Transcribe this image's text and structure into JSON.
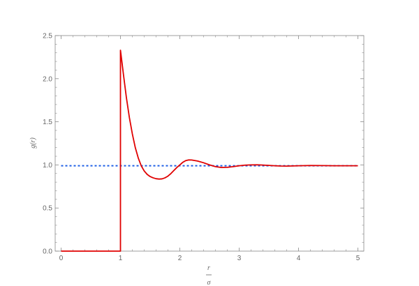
{
  "chart_data": {
    "type": "line",
    "title": "",
    "xlabel": {
      "numerator": "r",
      "denominator": "σ"
    },
    "ylabel": "g(r)",
    "xlim": [
      -0.1,
      5.1
    ],
    "ylim": [
      0,
      2.5
    ],
    "x_ticks": [
      "0",
      "1",
      "2",
      "3",
      "4",
      "5"
    ],
    "y_ticks": [
      "0.0",
      "0.5",
      "1.0",
      "1.5",
      "2.0",
      "2.5"
    ],
    "grid": false,
    "legend": "none",
    "series": [
      {
        "style": "dotted",
        "color": "#1f5fe6",
        "points": [
          [
            0.0,
            0.99
          ],
          [
            1.0,
            0.99
          ],
          [
            2.0,
            0.99
          ],
          [
            3.0,
            0.99
          ],
          [
            4.0,
            0.99
          ],
          [
            5.0,
            0.99
          ]
        ]
      },
      {
        "style": "solid",
        "color": "#e00000",
        "points": [
          [
            0.0,
            0.0
          ],
          [
            1.0,
            0.0
          ],
          [
            1.0,
            2.33
          ],
          [
            1.05,
            2.05
          ],
          [
            1.1,
            1.78
          ],
          [
            1.15,
            1.55
          ],
          [
            1.2,
            1.36
          ],
          [
            1.25,
            1.2
          ],
          [
            1.3,
            1.08
          ],
          [
            1.35,
            0.99
          ],
          [
            1.4,
            0.93
          ],
          [
            1.45,
            0.89
          ],
          [
            1.5,
            0.865
          ],
          [
            1.55,
            0.85
          ],
          [
            1.6,
            0.84
          ],
          [
            1.65,
            0.836
          ],
          [
            1.7,
            0.838
          ],
          [
            1.75,
            0.85
          ],
          [
            1.8,
            0.87
          ],
          [
            1.85,
            0.9
          ],
          [
            1.9,
            0.935
          ],
          [
            1.95,
            0.97
          ],
          [
            2.0,
            1.0
          ],
          [
            2.05,
            1.03
          ],
          [
            2.1,
            1.05
          ],
          [
            2.15,
            1.058
          ],
          [
            2.2,
            1.057
          ],
          [
            2.3,
            1.045
          ],
          [
            2.4,
            1.025
          ],
          [
            2.5,
            1.0
          ],
          [
            2.6,
            0.98
          ],
          [
            2.7,
            0.97
          ],
          [
            2.8,
            0.972
          ],
          [
            2.9,
            0.98
          ],
          [
            3.0,
            0.99
          ],
          [
            3.1,
            0.997
          ],
          [
            3.2,
            1.0
          ],
          [
            3.3,
            1.001
          ],
          [
            3.4,
            0.998
          ],
          [
            3.5,
            0.994
          ],
          [
            3.6,
            0.99
          ],
          [
            3.7,
            0.987
          ],
          [
            3.8,
            0.986
          ],
          [
            3.9,
            0.988
          ],
          [
            4.0,
            0.99
          ],
          [
            4.2,
            0.993
          ],
          [
            4.4,
            0.992
          ],
          [
            4.6,
            0.99
          ],
          [
            4.8,
            0.99
          ],
          [
            5.0,
            0.99
          ]
        ]
      }
    ]
  }
}
